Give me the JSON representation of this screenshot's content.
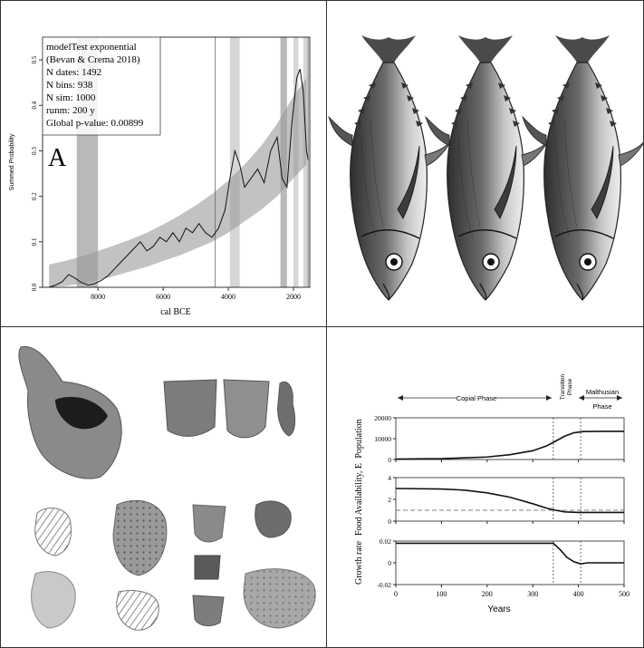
{
  "panels": {
    "summed_probability": {
      "panel_letter": "A",
      "legend_lines": [
        "modelTest exponential",
        "(Bevan & Crema 2018)",
        "N dates: 1492",
        "N bins: 938",
        "N sim: 1000",
        "runm: 200 y",
        "Global p-value: 0.00899"
      ]
    },
    "tuna_illustration": {
      "fish_count": 3
    },
    "pottery_sherds": {
      "sherd_count": 14
    },
    "population_model": {
      "phases": {
        "copial": "Copial Phase",
        "transition": [
          "Transition",
          "Phase"
        ],
        "malthusian": [
          "Malthusian",
          "Phase"
        ]
      }
    }
  },
  "chart_data": [
    {
      "type": "line",
      "title": "",
      "xlabel": "cal BCE",
      "ylabel": "Summed Probability",
      "xlim": [
        9700,
        1500
      ],
      "ylim": [
        0,
        0.55
      ],
      "x_reversed": true,
      "xticks": [
        8000,
        6000,
        4000,
        2000
      ],
      "yticks": [
        0.0,
        0.1,
        0.2,
        0.3,
        0.4,
        0.5
      ],
      "grid": false,
      "legend": "top-left",
      "envelope": {
        "x": [
          9500,
          9000,
          8500,
          8000,
          7500,
          7000,
          6500,
          6000,
          5500,
          5000,
          4500,
          4000,
          3500,
          3000,
          2500,
          2000,
          1600
        ],
        "lower": [
          0.0,
          0.003,
          0.008,
          0.015,
          0.025,
          0.035,
          0.045,
          0.058,
          0.07,
          0.085,
          0.1,
          0.12,
          0.145,
          0.17,
          0.2,
          0.24,
          0.27
        ],
        "upper": [
          0.05,
          0.058,
          0.068,
          0.08,
          0.092,
          0.105,
          0.12,
          0.138,
          0.158,
          0.18,
          0.205,
          0.235,
          0.27,
          0.31,
          0.36,
          0.42,
          0.46
        ]
      },
      "highlight_bands": [
        {
          "from": 8650,
          "to": 8000,
          "shade": "dark"
        },
        {
          "from": 3950,
          "to": 3650,
          "shade": "light"
        },
        {
          "from": 2400,
          "to": 2200,
          "shade": "dark"
        },
        {
          "from": 2000,
          "to": 1850,
          "shade": "light"
        },
        {
          "from": 1700,
          "to": 1550,
          "shade": "light"
        }
      ],
      "reference_lines": [
        4400,
        1550
      ],
      "series": [
        {
          "x": [
            9500,
            9300,
            9100,
            8900,
            8700,
            8500,
            8300,
            8100,
            7900,
            7700,
            7500,
            7300,
            7100,
            6900,
            6700,
            6500,
            6300,
            6100,
            5900,
            5700,
            5500,
            5300,
            5100,
            4900,
            4700,
            4500,
            4300,
            4100,
            3950,
            3800,
            3650,
            3500,
            3300,
            3100,
            2900,
            2700,
            2500,
            2350,
            2200,
            2050,
            1900,
            1800,
            1700,
            1600,
            1550
          ],
          "values": [
            0.0,
            0.005,
            0.012,
            0.028,
            0.02,
            0.01,
            0.005,
            0.008,
            0.015,
            0.025,
            0.04,
            0.055,
            0.07,
            0.085,
            0.1,
            0.08,
            0.09,
            0.11,
            0.1,
            0.12,
            0.1,
            0.13,
            0.12,
            0.14,
            0.12,
            0.11,
            0.13,
            0.17,
            0.24,
            0.3,
            0.27,
            0.22,
            0.24,
            0.26,
            0.23,
            0.3,
            0.33,
            0.24,
            0.22,
            0.36,
            0.46,
            0.48,
            0.43,
            0.3,
            0.28
          ]
        }
      ]
    },
    {
      "type": "line",
      "title": "",
      "xlabel": "Years",
      "xlim": [
        0,
        500
      ],
      "xticks": [
        0,
        100,
        200,
        300,
        400,
        500
      ],
      "vertical_markers": [
        345,
        405
      ],
      "subplots": [
        {
          "ylabel": "Population",
          "ylim": [
            0,
            20000
          ],
          "yticks": [
            0,
            10000,
            20000
          ],
          "series": [
            {
              "x": [
                0,
                100,
                200,
                250,
                300,
                330,
                350,
                370,
                390,
                410,
                450,
                500
              ],
              "values": [
                200,
                400,
                1200,
                2300,
                4200,
                6500,
                8800,
                11200,
                12800,
                13400,
                13500,
                13500
              ]
            }
          ]
        },
        {
          "ylabel": "Food Availability, E",
          "ylim": [
            0,
            4
          ],
          "yticks": [
            0,
            2,
            4
          ],
          "reference_y": 1,
          "series": [
            {
              "x": [
                0,
                100,
                150,
                200,
                250,
                300,
                330,
                350,
                370,
                400,
                450,
                500
              ],
              "values": [
                3.0,
                2.95,
                2.85,
                2.6,
                2.2,
                1.6,
                1.2,
                1.0,
                0.85,
                0.8,
                0.8,
                0.8
              ]
            }
          ]
        },
        {
          "ylabel": "Growth rate",
          "ylim": [
            -0.02,
            0.02
          ],
          "yticks": [
            0.02,
            0,
            -0.02
          ],
          "series": [
            {
              "x": [
                0,
                100,
                200,
                300,
                345,
                360,
                375,
                390,
                405,
                420,
                450,
                500
              ],
              "values": [
                0.018,
                0.018,
                0.018,
                0.018,
                0.018,
                0.012,
                0.005,
                0.001,
                -0.001,
                0.0,
                0.0,
                0.0
              ]
            }
          ]
        }
      ]
    }
  ]
}
